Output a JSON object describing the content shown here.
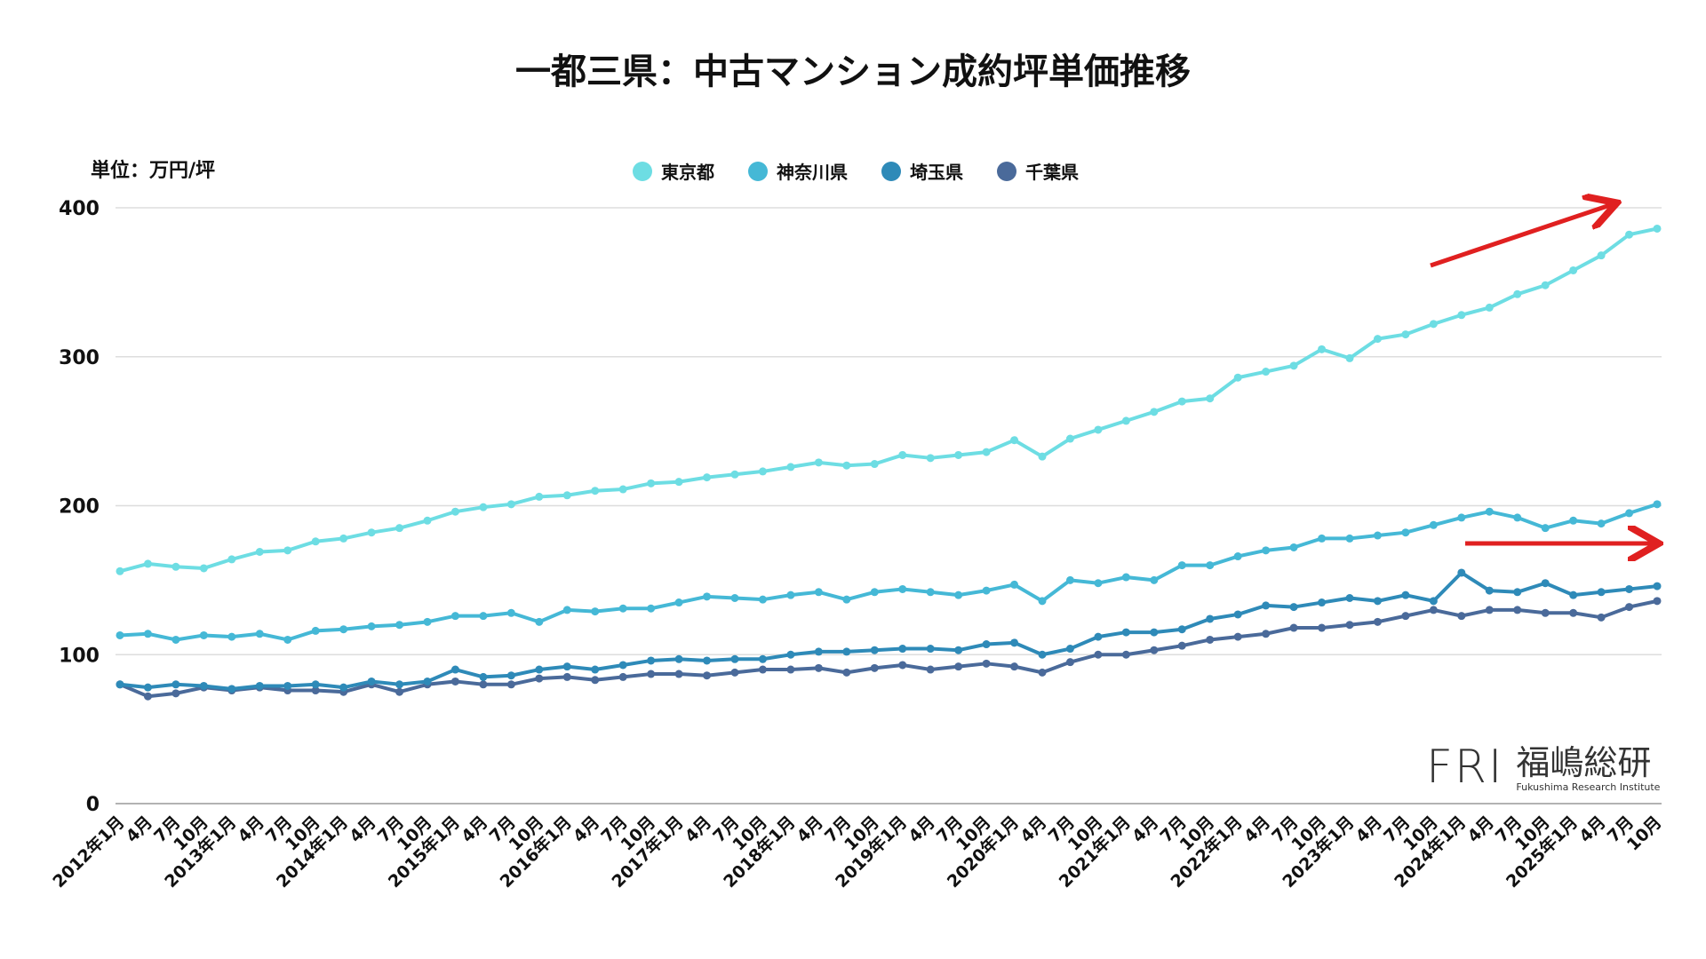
{
  "title": "一都三県：中古マンション成約坪単価推移",
  "chart_data": {
    "type": "line",
    "title": "一都三県：中古マンション成約坪単価推移",
    "ylabel": "単位：万円/坪",
    "xlabel": "",
    "ylim": [
      0,
      400
    ],
    "yticks": [
      0,
      100,
      200,
      300,
      400
    ],
    "grid": true,
    "legend": "top-center",
    "x": [
      "2012年1月",
      "4月",
      "7月",
      "10月",
      "2013年1月",
      "4月",
      "7月",
      "10月",
      "2014年1月",
      "4月",
      "7月",
      "10月",
      "2015年1月",
      "4月",
      "7月",
      "10月",
      "2016年1月",
      "4月",
      "7月",
      "10月",
      "2017年1月",
      "4月",
      "7月",
      "10月",
      "2018年1月",
      "4月",
      "7月",
      "10月",
      "2019年1月",
      "4月",
      "7月",
      "10月",
      "2020年1月",
      "4月",
      "7月",
      "10月",
      "2021年1月",
      "4月",
      "7月",
      "10月",
      "2022年1月",
      "4月",
      "7月",
      "10月",
      "2023年1月",
      "4月",
      "7月",
      "10月",
      "2024年1月",
      "4月",
      "7月",
      "10月",
      "2025年1月",
      "4月",
      "7月",
      "10月"
    ],
    "series": [
      {
        "name": "東京都",
        "color": "#6ddde3",
        "values": [
          156,
          161,
          159,
          158,
          164,
          169,
          170,
          176,
          178,
          182,
          185,
          190,
          196,
          199,
          201,
          206,
          207,
          210,
          211,
          215,
          216,
          219,
          221,
          223,
          226,
          229,
          227,
          228,
          234,
          232,
          234,
          236,
          244,
          233,
          245,
          251,
          257,
          263,
          270,
          272,
          286,
          290,
          294,
          305,
          299,
          312,
          315,
          322,
          328,
          333,
          342,
          348,
          358,
          368,
          382,
          386
        ]
      },
      {
        "name": "神奈川県",
        "color": "#45b8d6",
        "values": [
          113,
          114,
          110,
          113,
          112,
          114,
          110,
          116,
          117,
          119,
          120,
          122,
          126,
          126,
          128,
          122,
          130,
          129,
          131,
          131,
          135,
          139,
          138,
          137,
          140,
          142,
          137,
          142,
          144,
          142,
          140,
          143,
          147,
          136,
          150,
          148,
          152,
          150,
          160,
          160,
          166,
          170,
          172,
          178,
          178,
          180,
          182,
          187,
          192,
          196,
          192,
          185,
          190,
          188,
          195,
          201
        ]
      },
      {
        "name": "埼玉県",
        "color": "#2e8ab8",
        "values": [
          80,
          78,
          80,
          79,
          77,
          79,
          79,
          80,
          78,
          82,
          80,
          82,
          90,
          85,
          86,
          90,
          92,
          90,
          93,
          96,
          97,
          96,
          97,
          97,
          100,
          102,
          102,
          103,
          104,
          104,
          103,
          107,
          108,
          100,
          104,
          112,
          115,
          115,
          117,
          124,
          127,
          133,
          132,
          135,
          138,
          136,
          140,
          136,
          155,
          143,
          142,
          148,
          140,
          142,
          144,
          146
        ]
      },
      {
        "name": "千葉県",
        "color": "#4a6a9a",
        "values": [
          80,
          72,
          74,
          78,
          76,
          78,
          76,
          76,
          75,
          80,
          75,
          80,
          82,
          80,
          80,
          84,
          85,
          83,
          85,
          87,
          87,
          86,
          88,
          90,
          90,
          91,
          88,
          91,
          93,
          90,
          92,
          94,
          92,
          88,
          95,
          100,
          100,
          103,
          106,
          110,
          112,
          114,
          118,
          118,
          120,
          122,
          126,
          130,
          126,
          130,
          130,
          128,
          128,
          125,
          132,
          136
        ]
      }
    ],
    "annotations": [
      {
        "type": "arrow",
        "color": "#e02020",
        "target": "東京都",
        "direction": "up"
      },
      {
        "type": "arrow",
        "color": "#e02020",
        "target": "神奈川県",
        "direction": "flat"
      }
    ]
  },
  "logo": {
    "mark": "FRI",
    "name_jp": "福嶋総研",
    "name_en": "Fukushima Research Institute"
  }
}
